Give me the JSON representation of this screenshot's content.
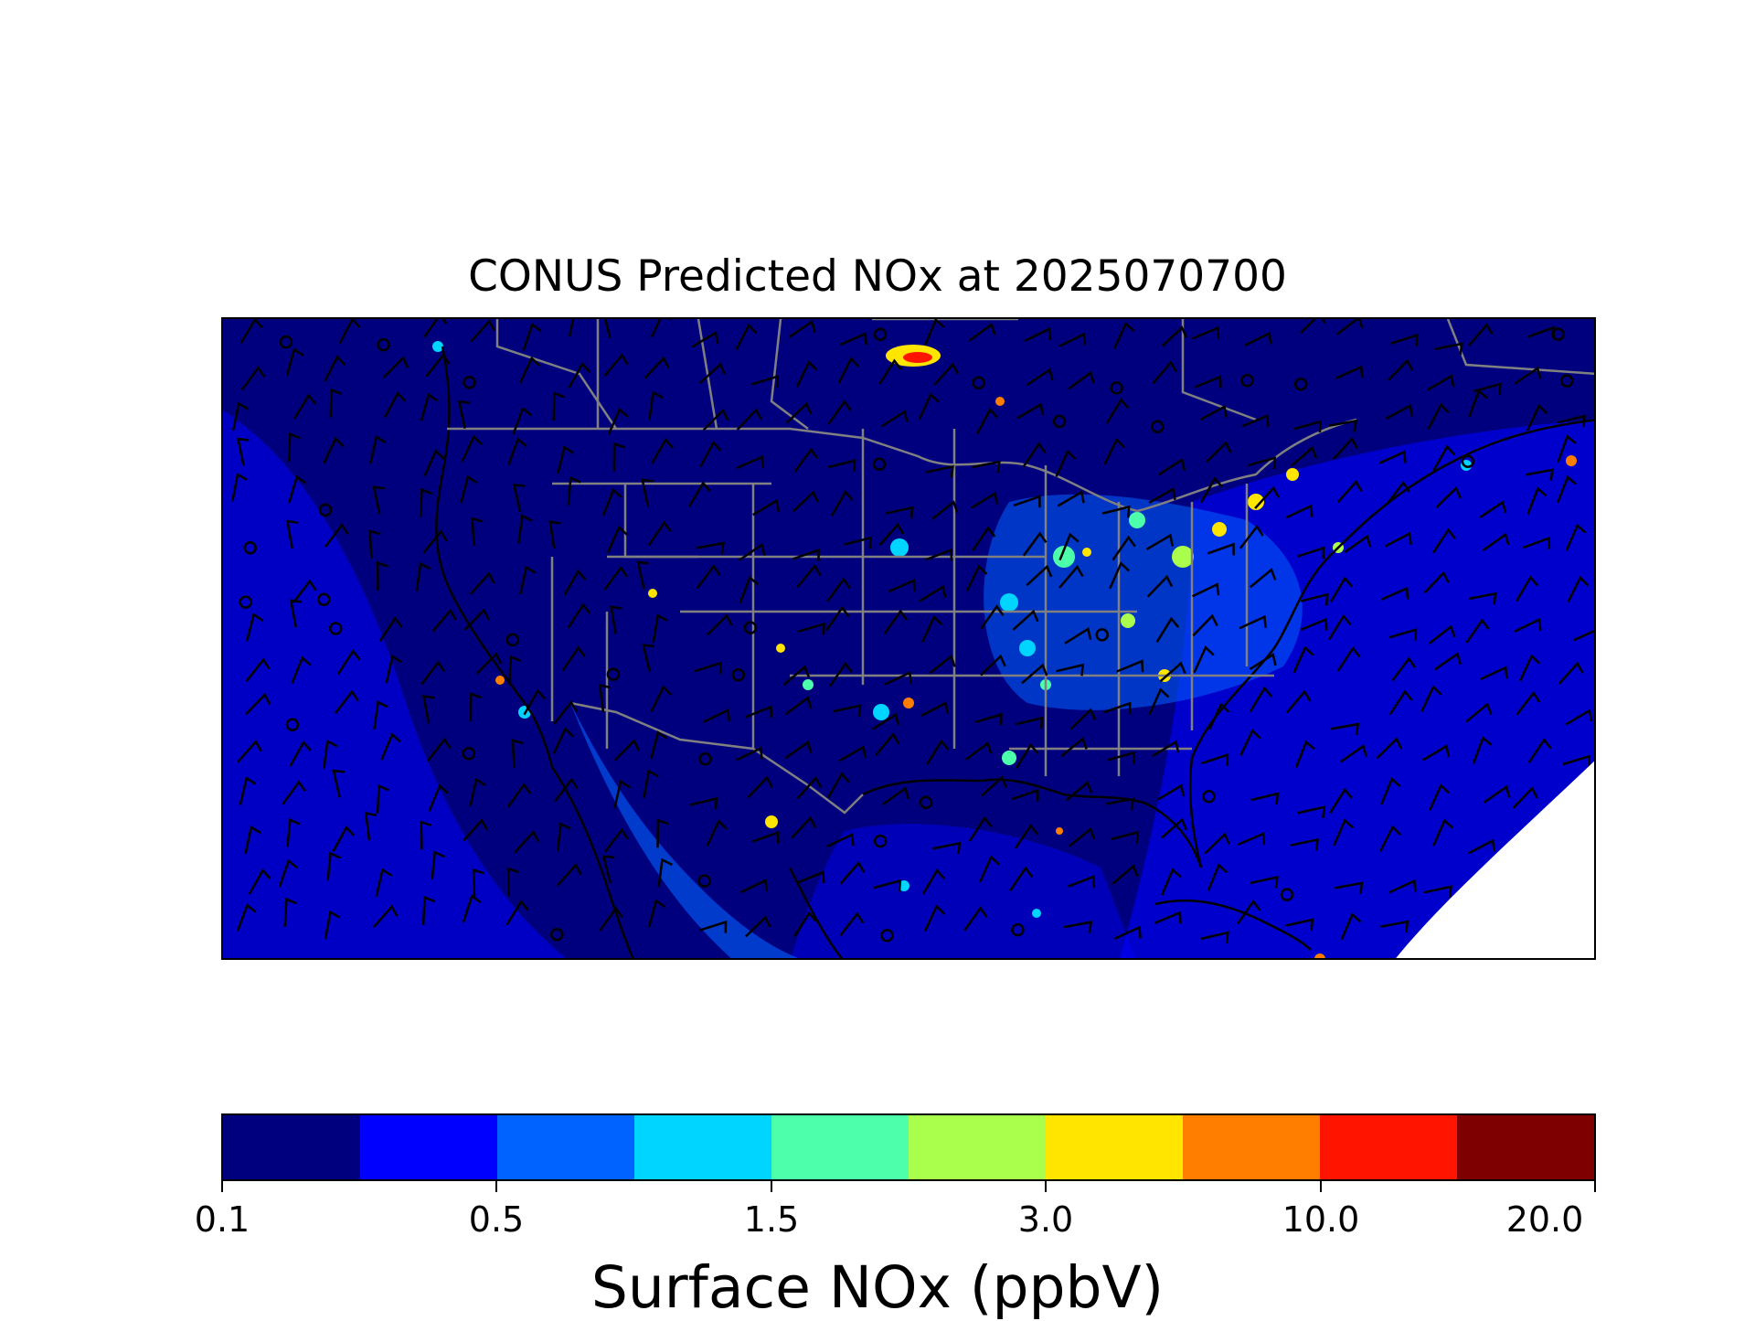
{
  "title": "CONUS Predicted NOx at 2025070700",
  "colorbar": {
    "label": "Surface NOx (ppbV)",
    "colors": [
      "#00007f",
      "#0000ff",
      "#0063ff",
      "#00d5ff",
      "#4dffaa",
      "#aaff4d",
      "#ffe500",
      "#ff7e00",
      "#ff1400",
      "#7f0000"
    ],
    "ticks": [
      "0.1",
      "0.5",
      "1.5",
      "3.0",
      "10.0",
      "20.0"
    ]
  },
  "map": {
    "background_color": "#00007f",
    "coast_color": "#000000",
    "border_color": "#808080",
    "wind_barb_color": "#000000",
    "no_data_color": "#ffffff"
  }
}
